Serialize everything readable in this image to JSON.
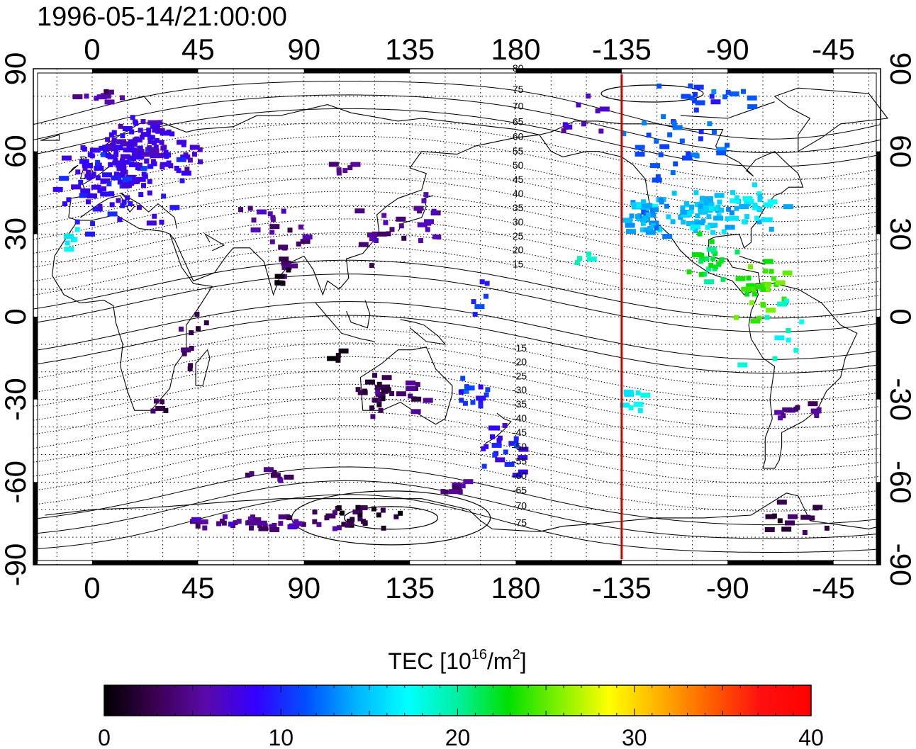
{
  "timestamp": "1996-05-14/21:00:00",
  "map": {
    "lon_ticks": [
      {
        "lon": 0,
        "label": "0"
      },
      {
        "lon": 45,
        "label": "45"
      },
      {
        "lon": 90,
        "label": "90"
      },
      {
        "lon": 135,
        "label": "135"
      },
      {
        "lon": 180,
        "label": "180"
      },
      {
        "lon": 225,
        "label": "-135"
      },
      {
        "lon": 270,
        "label": "-90"
      },
      {
        "lon": 315,
        "label": "-45"
      }
    ],
    "lat_ticks": [
      {
        "lat": 90,
        "label": "90"
      },
      {
        "lat": 60,
        "label": "60"
      },
      {
        "lat": 30,
        "label": "30"
      },
      {
        "lat": 0,
        "label": "0"
      },
      {
        "lat": -30,
        "label": "-30"
      },
      {
        "lat": -60,
        "label": "-60"
      },
      {
        "lat": -90,
        "label": "-90"
      }
    ],
    "lon_range": [
      -25,
      335
    ],
    "lat_range": [
      -90,
      90
    ],
    "terminator_lon": 225,
    "terminator_color": "#cc0000",
    "magnetic_lat_labels": [
      "80",
      "75",
      "70",
      "65",
      "60",
      "55",
      "50",
      "45",
      "40",
      "35",
      "30",
      "25",
      "20",
      "15",
      "-15",
      "-20",
      "-25",
      "-30",
      "-35",
      "-40",
      "-45",
      "-50",
      "-55",
      "-60",
      "-65",
      "-70",
      "-75"
    ]
  },
  "colorbar": {
    "title_main": "TEC  [10",
    "title_sup1": "16",
    "title_mid": "/m",
    "title_sup2": "2",
    "title_end": "]",
    "ticks": [
      {
        "value": 0,
        "label": "0"
      },
      {
        "value": 10,
        "label": "10"
      },
      {
        "value": 20,
        "label": "20"
      },
      {
        "value": 30,
        "label": "30"
      },
      {
        "value": 40,
        "label": "40"
      }
    ],
    "range": [
      0,
      40
    ],
    "colors": [
      "#000000",
      "#3a0050",
      "#5a0aa8",
      "#3300ff",
      "#0050ff",
      "#00b4ff",
      "#00ffff",
      "#00f0a0",
      "#00e000",
      "#80f000",
      "#ffff00",
      "#ffb000",
      "#ff6000",
      "#ff1010",
      "#ff0000"
    ]
  },
  "tec_clusters": [
    {
      "lon": 10,
      "lat": 52,
      "tec": 8.5,
      "sx": 14,
      "sy": 12,
      "n": 140
    },
    {
      "lon": 20,
      "lat": 62,
      "tec": 7.5,
      "sx": 10,
      "sy": 8,
      "n": 60
    },
    {
      "lon": 40,
      "lat": 56,
      "tec": 7,
      "sx": 8,
      "sy": 6,
      "n": 18
    },
    {
      "lon": -8,
      "lat": 28,
      "tec": 17,
      "sx": 4,
      "sy": 4,
      "n": 8
    },
    {
      "lon": 75,
      "lat": 38,
      "tec": 5,
      "sx": 10,
      "sy": 6,
      "n": 12
    },
    {
      "lon": 85,
      "lat": 22,
      "tec": 4,
      "sx": 8,
      "sy": 8,
      "n": 12
    },
    {
      "lon": 80,
      "lat": 13,
      "tec": 1.5,
      "sx": 3,
      "sy": 3,
      "n": 6
    },
    {
      "lon": 123,
      "lat": 30,
      "tec": 4.5,
      "sx": 6,
      "sy": 7,
      "n": 16
    },
    {
      "lon": 142,
      "lat": 34,
      "tec": 6,
      "sx": 7,
      "sy": 6,
      "n": 14
    },
    {
      "lon": 165,
      "lat": 8,
      "tec": 10,
      "sx": 4,
      "sy": 6,
      "n": 6
    },
    {
      "lon": 210,
      "lat": 22,
      "tec": 20,
      "sx": 3,
      "sy": 2,
      "n": 4
    },
    {
      "lon": 236,
      "lat": 37,
      "tec": 14,
      "sx": 6,
      "sy": 5,
      "n": 40
    },
    {
      "lon": 260,
      "lat": 38,
      "tec": 15,
      "sx": 10,
      "sy": 6,
      "n": 60
    },
    {
      "lon": 282,
      "lat": 40,
      "tec": 16,
      "sx": 10,
      "sy": 6,
      "n": 30
    },
    {
      "lon": 262,
      "lat": 20,
      "tec": 22,
      "sx": 6,
      "sy": 6,
      "n": 25
    },
    {
      "lon": 285,
      "lat": 10,
      "tec": 24,
      "sx": 10,
      "sy": 7,
      "n": 30
    },
    {
      "lon": 295,
      "lat": -5,
      "tec": 18,
      "sx": 12,
      "sy": 10,
      "n": 10
    },
    {
      "lon": 300,
      "lat": -35,
      "tec": 5,
      "sx": 7,
      "sy": 3,
      "n": 12
    },
    {
      "lon": 298,
      "lat": -72,
      "tec": 3,
      "sx": 7,
      "sy": 4,
      "n": 14
    },
    {
      "lon": 250,
      "lat": 62,
      "tec": 12,
      "sx": 18,
      "sy": 8,
      "n": 30
    },
    {
      "lon": 265,
      "lat": 80,
      "tec": 11,
      "sx": 16,
      "sy": 4,
      "n": 18
    },
    {
      "lon": 40,
      "lat": -10,
      "tec": 3,
      "sx": 5,
      "sy": 10,
      "n": 10
    },
    {
      "lon": 30,
      "lat": -33,
      "tec": 3,
      "sx": 4,
      "sy": 3,
      "n": 5
    },
    {
      "lon": 120,
      "lat": -28,
      "tec": 3,
      "sx": 4,
      "sy": 5,
      "n": 25
    },
    {
      "lon": 140,
      "lat": -30,
      "tec": 4,
      "sx": 10,
      "sy": 4,
      "n": 10
    },
    {
      "lon": 160,
      "lat": -28,
      "tec": 10,
      "sx": 8,
      "sy": 6,
      "n": 14
    },
    {
      "lon": 175,
      "lat": -48,
      "tec": 9,
      "sx": 7,
      "sy": 6,
      "n": 22
    },
    {
      "lon": 155,
      "lat": -62,
      "tec": 5,
      "sx": 5,
      "sy": 2,
      "n": 8
    },
    {
      "lon": 75,
      "lat": -57,
      "tec": 4,
      "sx": 8,
      "sy": 3,
      "n": 8
    },
    {
      "lon": 70,
      "lat": -75,
      "tec": 5,
      "sx": 25,
      "sy": 2,
      "n": 40
    },
    {
      "lon": 110,
      "lat": -72,
      "tec": 2,
      "sx": 15,
      "sy": 3,
      "n": 30
    },
    {
      "lon": 230,
      "lat": -30,
      "tec": 17,
      "sx": 6,
      "sy": 5,
      "n": 8
    },
    {
      "lon": 105,
      "lat": -15,
      "tec": 1,
      "sx": 3,
      "sy": 2,
      "n": 4
    },
    {
      "lon": 0,
      "lat": 80,
      "tec": 5,
      "sx": 10,
      "sy": 2,
      "n": 10
    },
    {
      "lon": 210,
      "lat": 73,
      "tec": 7,
      "sx": 10,
      "sy": 5,
      "n": 10
    },
    {
      "lon": 110,
      "lat": 55,
      "tec": 5,
      "sx": 8,
      "sy": 3,
      "n": 6
    }
  ]
}
